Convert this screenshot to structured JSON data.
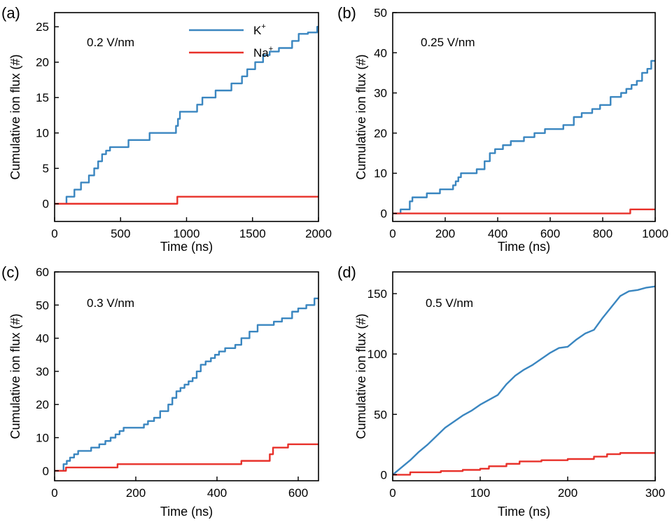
{
  "colors": {
    "K": "#3a86c0",
    "Na": "#e8312a"
  },
  "legend": {
    "k_label": "K",
    "na_label": "Na",
    "superscript": "+"
  },
  "chart_data": [
    {
      "panel": "(a)",
      "type": "line",
      "annotation": "0.2 V/nm",
      "show_legend": true,
      "xlabel": "Time (ns)",
      "ylabel": "Cumulative ion flux (#)",
      "xlim": [
        0,
        2000
      ],
      "ylim": [
        -2.5,
        27
      ],
      "xticks": [
        0,
        500,
        1000,
        1500,
        2000
      ],
      "yticks": [
        0,
        5,
        10,
        15,
        20,
        25
      ],
      "series": [
        {
          "name": "K",
          "x": [
            0,
            90,
            90,
            150,
            150,
            200,
            200,
            260,
            260,
            300,
            300,
            330,
            330,
            360,
            360,
            390,
            390,
            420,
            420,
            560,
            560,
            720,
            720,
            920,
            920,
            935,
            935,
            950,
            950,
            1080,
            1080,
            1120,
            1120,
            1220,
            1220,
            1340,
            1340,
            1420,
            1420,
            1460,
            1460,
            1520,
            1520,
            1580,
            1580,
            1630,
            1630,
            1700,
            1700,
            1800,
            1800,
            1850,
            1850,
            1920,
            1920,
            1990,
            1990,
            2000
          ],
          "y": [
            0,
            0,
            1,
            1,
            2,
            2,
            3,
            3,
            4,
            4,
            5,
            5,
            6,
            6,
            7,
            7,
            7.5,
            7.5,
            8,
            8,
            9,
            9,
            10,
            10,
            11,
            11,
            12,
            12,
            13,
            13,
            14,
            14,
            15,
            15,
            16,
            16,
            17,
            17,
            18,
            18,
            19,
            19,
            20,
            20,
            21,
            21,
            21.5,
            21.5,
            22,
            22,
            23,
            23,
            24,
            24,
            24.2,
            24.2,
            25,
            25
          ]
        },
        {
          "name": "Na",
          "x": [
            0,
            930,
            930,
            2000
          ],
          "y": [
            0,
            0,
            1,
            1
          ]
        }
      ]
    },
    {
      "panel": "(b)",
      "type": "line",
      "annotation": "0.25 V/nm",
      "show_legend": false,
      "xlabel": "Time (ns)",
      "ylabel": "Cumulative ion flux (#)",
      "xlim": [
        0,
        1000
      ],
      "ylim": [
        -2,
        50
      ],
      "xticks": [
        0,
        200,
        400,
        600,
        800,
        1000
      ],
      "yticks": [
        0,
        10,
        20,
        30,
        40,
        50
      ],
      "series": [
        {
          "name": "K",
          "x": [
            0,
            30,
            30,
            65,
            65,
            75,
            75,
            85,
            85,
            130,
            130,
            180,
            180,
            230,
            230,
            240,
            240,
            250,
            250,
            260,
            260,
            270,
            270,
            320,
            320,
            350,
            350,
            370,
            370,
            390,
            390,
            420,
            420,
            450,
            450,
            500,
            500,
            540,
            540,
            580,
            580,
            610,
            610,
            650,
            650,
            690,
            690,
            720,
            720,
            760,
            760,
            790,
            790,
            830,
            830,
            870,
            870,
            890,
            890,
            910,
            910,
            930,
            930,
            950,
            950,
            970,
            970,
            985,
            985,
            1000
          ],
          "y": [
            0,
            0,
            1,
            1,
            3,
            3,
            4,
            4,
            4,
            4,
            5,
            5,
            6,
            6,
            7,
            7,
            8,
            8,
            9,
            9,
            10,
            10,
            10,
            10,
            11,
            11,
            13,
            13,
            15,
            15,
            16,
            16,
            17,
            17,
            18,
            18,
            19,
            19,
            20,
            20,
            21,
            21,
            21,
            21,
            22,
            22,
            24,
            24,
            25,
            25,
            26,
            26,
            27,
            27,
            29,
            29,
            30,
            30,
            31,
            31,
            32,
            32,
            33,
            33,
            35,
            35,
            36,
            36,
            38,
            38
          ]
        },
        {
          "name": "Na",
          "x": [
            0,
            905,
            905,
            1000
          ],
          "y": [
            0,
            0,
            1,
            1
          ]
        }
      ]
    },
    {
      "panel": "(c)",
      "type": "line",
      "annotation": "0.3 V/nm",
      "show_legend": false,
      "xlabel": "Time (ns)",
      "ylabel": "Cumulative ion flux (#)",
      "xlim": [
        0,
        650
      ],
      "ylim": [
        -3,
        60
      ],
      "xticks": [
        0,
        200,
        400,
        600
      ],
      "yticks": [
        0,
        10,
        20,
        30,
        40,
        50,
        60
      ],
      "series": [
        {
          "name": "K",
          "x": [
            0,
            22,
            22,
            30,
            30,
            38,
            38,
            48,
            48,
            58,
            58,
            90,
            90,
            110,
            110,
            125,
            125,
            138,
            138,
            150,
            150,
            160,
            160,
            170,
            170,
            220,
            220,
            230,
            230,
            245,
            245,
            260,
            260,
            280,
            280,
            290,
            290,
            300,
            300,
            310,
            310,
            320,
            320,
            330,
            330,
            340,
            340,
            350,
            350,
            360,
            360,
            372,
            372,
            385,
            385,
            395,
            395,
            405,
            405,
            420,
            420,
            445,
            445,
            460,
            460,
            480,
            480,
            500,
            500,
            540,
            540,
            560,
            560,
            585,
            585,
            600,
            600,
            620,
            620,
            640,
            640,
            650
          ],
          "y": [
            0,
            0,
            2,
            2,
            3,
            3,
            4,
            4,
            5,
            5,
            6,
            6,
            7,
            7,
            8,
            8,
            9,
            9,
            10,
            10,
            11,
            11,
            12,
            12,
            13,
            13,
            14,
            14,
            15,
            15,
            16,
            16,
            18,
            18,
            20,
            20,
            22,
            22,
            24,
            24,
            25,
            25,
            26,
            26,
            27,
            27,
            28,
            28,
            30,
            30,
            32,
            32,
            33,
            33,
            34,
            34,
            35,
            35,
            36,
            36,
            37,
            37,
            38,
            38,
            40,
            40,
            42,
            42,
            44,
            44,
            45,
            45,
            46,
            46,
            48,
            48,
            49,
            49,
            50,
            50,
            52,
            52
          ]
        },
        {
          "name": "Na",
          "x": [
            0,
            28,
            28,
            155,
            155,
            460,
            460,
            530,
            530,
            538,
            538,
            575,
            575,
            650
          ],
          "y": [
            0,
            0,
            1,
            1,
            2,
            2,
            3,
            3,
            5,
            5,
            7,
            7,
            8,
            8
          ]
        }
      ]
    },
    {
      "panel": "(d)",
      "type": "line",
      "annotation": "0.5 V/nm",
      "show_legend": false,
      "xlabel": "Time (ns)",
      "ylabel": "Cumulative ion flux (#)",
      "xlim": [
        0,
        300
      ],
      "ylim": [
        -5,
        168
      ],
      "xticks": [
        0,
        100,
        200,
        300
      ],
      "yticks": [
        0,
        50,
        100,
        150
      ],
      "series": [
        {
          "name": "K",
          "x": [
            0,
            10,
            20,
            30,
            40,
            50,
            60,
            70,
            80,
            90,
            100,
            110,
            120,
            130,
            140,
            150,
            160,
            170,
            180,
            190,
            200,
            210,
            220,
            230,
            240,
            250,
            260,
            270,
            280,
            290,
            300
          ],
          "y": [
            0,
            6,
            12,
            19,
            25,
            32,
            39,
            44,
            49,
            53,
            58,
            62,
            66,
            75,
            82,
            87,
            91,
            96,
            101,
            105,
            106,
            112,
            117,
            120,
            130,
            139,
            148,
            152,
            153,
            155,
            156
          ]
        },
        {
          "name": "Na",
          "x": [
            0,
            20,
            20,
            55,
            55,
            80,
            80,
            100,
            100,
            110,
            110,
            130,
            130,
            145,
            145,
            170,
            170,
            200,
            200,
            230,
            230,
            245,
            245,
            260,
            260,
            300
          ],
          "y": [
            0,
            0,
            2,
            2,
            3,
            3,
            4,
            4,
            5,
            5,
            7,
            7,
            9,
            9,
            11,
            11,
            12,
            12,
            13,
            13,
            15,
            15,
            17,
            17,
            18,
            18
          ]
        }
      ]
    }
  ]
}
